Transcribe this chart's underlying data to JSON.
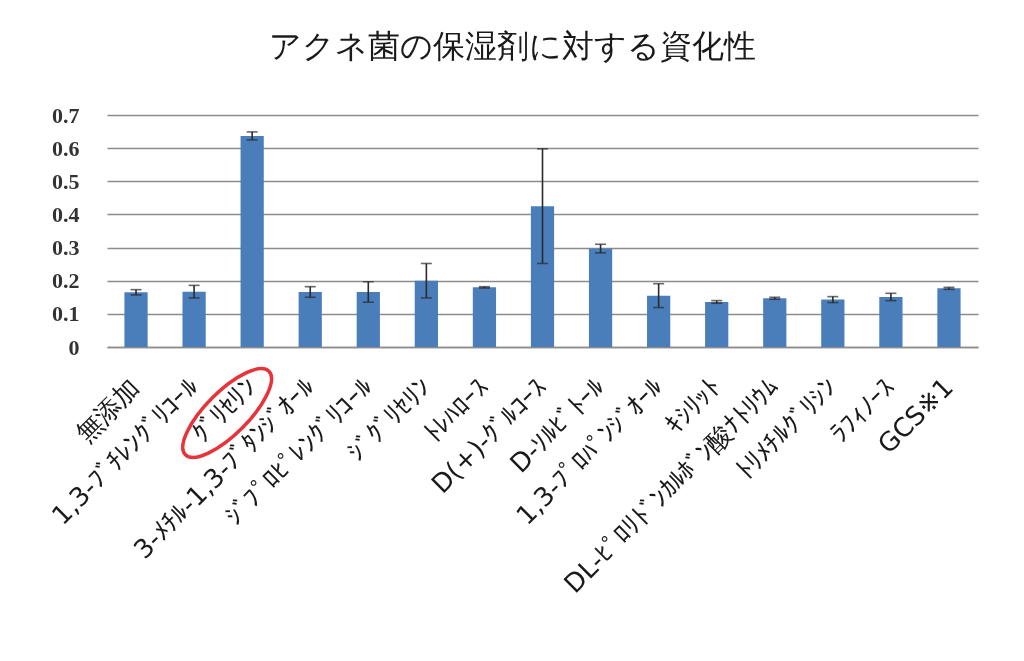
{
  "chart_data": {
    "type": "bar",
    "title": "アクネ菌の保湿剤に対する資化性",
    "categories": [
      "無添加",
      "1,3-ﾌﾞﾁﾚﾝｸﾞﾘｺｰﾙ",
      "ｸﾞﾘｾﾘﾝ",
      "3-ﾒﾁﾙ-1,3-ﾌﾞﾀﾝｼﾞｵｰﾙ",
      "ｼﾞﾌﾟﾛﾋﾟﾚﾝｸﾞﾘｺｰﾙ",
      "ｼﾞｸﾞﾘｾﾘﾝ",
      "ﾄﾚﾊﾛｰｽ",
      "D(+)-ｸﾞﾙｺｰｽ",
      "D-ｿﾙﾋﾞﾄｰﾙ",
      "1,3-ﾌﾟﾛﾊﾟﾝｼﾞｵｰﾙ",
      "ｷｼﾘｯﾄ",
      "DL-ﾋﾟﾛﾘﾄﾞﾝｶﾙﾎﾞﾝ酸ﾅﾄﾘｳﾑ",
      "ﾄﾘﾒﾁﾙｸﾞﾘｼﾝ",
      "ﾗﾌｨﾉｰｽ",
      "GCS※1"
    ],
    "values": [
      0.165,
      0.167,
      0.637,
      0.166,
      0.166,
      0.2,
      0.18,
      0.425,
      0.297,
      0.155,
      0.136,
      0.147,
      0.143,
      0.151,
      0.177
    ],
    "errors": [
      0.008,
      0.019,
      0.012,
      0.016,
      0.031,
      0.052,
      0.002,
      0.173,
      0.013,
      0.036,
      0.004,
      0.003,
      0.009,
      0.011,
      0.003
    ],
    "color": "#4a7ebb",
    "ylim": [
      0,
      0.7
    ],
    "yticks": [
      0,
      0.1,
      0.2,
      0.3,
      0.4,
      0.5,
      0.6,
      0.7
    ],
    "grid": "y"
  }
}
